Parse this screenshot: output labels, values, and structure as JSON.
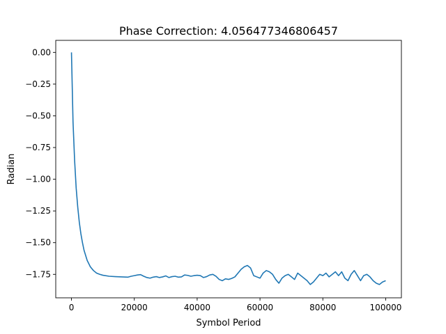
{
  "chart_data": {
    "type": "line",
    "title": "Phase Correction: 4.056477346806457",
    "xlabel": "Symbol Period",
    "ylabel": "Radian",
    "xlim": [
      -5000,
      105000
    ],
    "ylim": [
      -1.935,
      0.095
    ],
    "xticks": [
      0,
      20000,
      40000,
      60000,
      80000,
      100000
    ],
    "xtick_labels": [
      "0",
      "20000",
      "40000",
      "60000",
      "80000",
      "100000"
    ],
    "yticks": [
      0.0,
      -0.25,
      -0.5,
      -0.75,
      -1.0,
      -1.25,
      -1.5,
      -1.75
    ],
    "ytick_labels": [
      "0.00",
      "−0.25",
      "−0.50",
      "−0.75",
      "−1.00",
      "−1.25",
      "−1.50",
      "−1.75"
    ],
    "grid": false,
    "line_color": "#1f77b4",
    "series": [
      {
        "x": [
          0,
          500,
          1000,
          1500,
          2000,
          2500,
          3000,
          3500,
          4000,
          5000,
          6000,
          7000,
          8000,
          9000,
          10000,
          12000,
          14000,
          16000,
          18000,
          19000,
          20000,
          21000,
          22000,
          23000,
          24000,
          25000,
          26000,
          27000,
          28000,
          29000,
          30000,
          31000,
          32000,
          33000,
          34000,
          35000,
          36000,
          37000,
          38000,
          39000,
          40000,
          41000,
          42000,
          43000,
          44000,
          45000,
          46000,
          47000,
          48000,
          49000,
          50000,
          51000,
          52000,
          53000,
          54000,
          55000,
          56000,
          57000,
          58000,
          59000,
          60000,
          61000,
          62000,
          63000,
          64000,
          65000,
          66000,
          67000,
          68000,
          69000,
          70000,
          71000,
          72000,
          73000,
          74000,
          75000,
          76000,
          77000,
          78000,
          79000,
          80000,
          81000,
          82000,
          83000,
          84000,
          85000,
          86000,
          87000,
          88000,
          89000,
          90000,
          91000,
          92000,
          93000,
          94000,
          95000,
          96000,
          97000,
          98000,
          99000,
          100000
        ],
        "y": [
          0.0,
          -0.55,
          -0.85,
          -1.07,
          -1.22,
          -1.34,
          -1.43,
          -1.5,
          -1.56,
          -1.64,
          -1.69,
          -1.72,
          -1.74,
          -1.75,
          -1.757,
          -1.765,
          -1.768,
          -1.77,
          -1.772,
          -1.765,
          -1.76,
          -1.755,
          -1.752,
          -1.765,
          -1.775,
          -1.78,
          -1.772,
          -1.768,
          -1.775,
          -1.77,
          -1.762,
          -1.775,
          -1.768,
          -1.765,
          -1.772,
          -1.77,
          -1.755,
          -1.758,
          -1.765,
          -1.76,
          -1.757,
          -1.76,
          -1.775,
          -1.768,
          -1.755,
          -1.75,
          -1.765,
          -1.79,
          -1.8,
          -1.785,
          -1.79,
          -1.782,
          -1.77,
          -1.74,
          -1.71,
          -1.69,
          -1.68,
          -1.7,
          -1.76,
          -1.77,
          -1.78,
          -1.74,
          -1.72,
          -1.73,
          -1.75,
          -1.79,
          -1.82,
          -1.78,
          -1.76,
          -1.75,
          -1.77,
          -1.79,
          -1.74,
          -1.76,
          -1.78,
          -1.8,
          -1.83,
          -1.81,
          -1.78,
          -1.75,
          -1.76,
          -1.74,
          -1.77,
          -1.75,
          -1.73,
          -1.76,
          -1.73,
          -1.78,
          -1.8,
          -1.75,
          -1.72,
          -1.76,
          -1.8,
          -1.76,
          -1.75,
          -1.77,
          -1.8,
          -1.82,
          -1.83,
          -1.81,
          -1.8
        ]
      }
    ]
  }
}
